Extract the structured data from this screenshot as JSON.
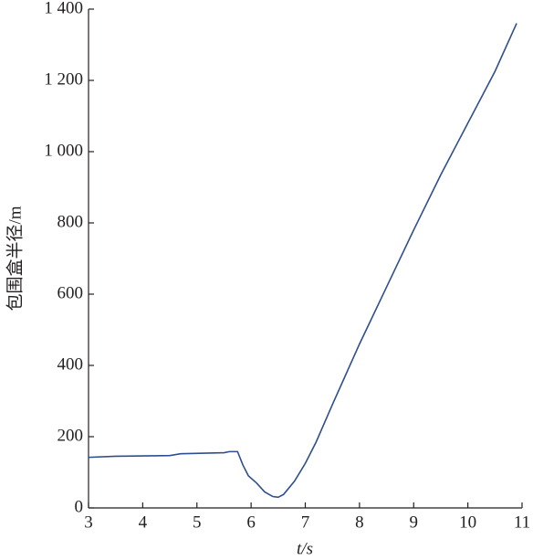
{
  "chart_data": {
    "type": "line",
    "x_label": "t/s",
    "y_label": "包围盒半径/m",
    "xlim": [
      3,
      11
    ],
    "xticks": [
      3,
      4,
      5,
      6,
      7,
      8,
      9,
      10,
      11
    ],
    "ylim": [
      0,
      1400
    ],
    "yticks": [
      0,
      200,
      400,
      600,
      800,
      {
        "value": 1000,
        "label": "1 000"
      },
      {
        "value": 1200,
        "label": "1 200"
      },
      {
        "value": 1400,
        "label": "1 400"
      }
    ],
    "x": [
      3,
      3.5,
      4.5,
      4.7,
      5.5,
      5.6,
      5.75,
      5.85,
      5.95,
      6.1,
      6.25,
      6.4,
      6.5,
      6.6,
      6.8,
      7.0,
      7.2,
      7.5,
      8,
      8.5,
      9,
      9.5,
      10,
      10.5,
      10.9
    ],
    "series": [
      {
        "color": "#2e4f8f",
        "values": [
          142,
          145,
          147,
          152,
          155,
          158,
          158,
          120,
          90,
          70,
          45,
          32,
          30,
          38,
          75,
          125,
          185,
          290,
          460,
          620,
          780,
          935,
          1080,
          1225,
          1360
        ]
      }
    ]
  }
}
